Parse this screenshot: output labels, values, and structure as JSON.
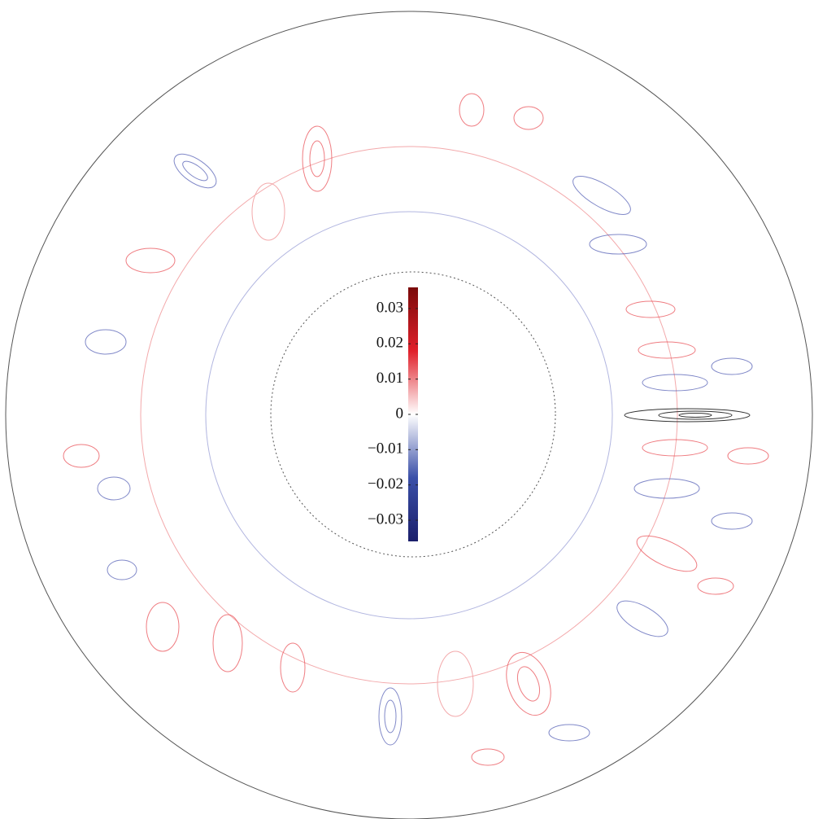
{
  "chart_data": {
    "type": "contour",
    "colorbar": {
      "clim": [
        -0.036,
        0.036
      ],
      "ticks": [
        0.03,
        0.02,
        0.01,
        0,
        {
          "value": -0.01,
          "label": "−0.01"
        },
        {
          "value": -0.02,
          "label": "−0.02"
        },
        {
          "value": -0.03,
          "label": "−0.03"
        }
      ],
      "colormap": [
        "#1b1f6b",
        "#3a4fa8",
        "#ffffff",
        "#e0202a",
        "#7a0a0a"
      ]
    }
  }
}
